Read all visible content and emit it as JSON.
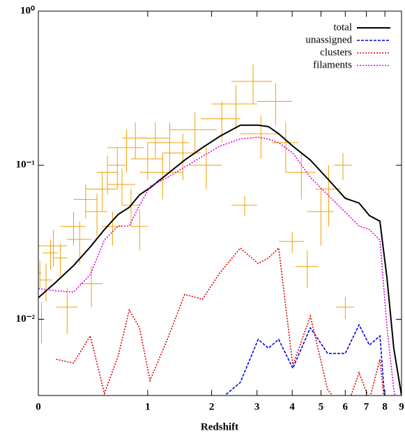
{
  "chart_data": {
    "type": "line",
    "xlabel": "Redshift",
    "xscale": "log(1+x)",
    "yscale": "log",
    "legend": "upper right",
    "xlim": [
      0,
      9
    ],
    "xticks": [
      0,
      1,
      2,
      3,
      4,
      5,
      6,
      7,
      8,
      9
    ],
    "ylim": [
      0.0032,
      1
    ],
    "yticks": [
      {
        "value": 1,
        "label": "10⁰"
      },
      {
        "value": 0.1,
        "label": "10⁻¹"
      },
      {
        "value": 0.01,
        "label": "10⁻²"
      }
    ],
    "x": [
      0,
      0.12,
      0.25,
      0.39,
      0.52,
      0.66,
      0.78,
      0.9,
      1.03,
      1.27,
      1.53,
      1.83,
      2.16,
      2.6,
      3.03,
      3.3,
      3.59,
      4.02,
      4.61,
      5.26,
      6.0,
      6.64,
      7.16,
      7.72,
      8.12,
      8.52,
      9.0
    ],
    "series": [
      {
        "name": "total",
        "color": "#000000",
        "dash": "solid",
        "values": [
          0.0138,
          0.0175,
          0.0223,
          0.0295,
          0.0382,
          0.048,
          0.0533,
          0.0643,
          0.0713,
          0.088,
          0.108,
          0.13,
          0.154,
          0.182,
          0.182,
          0.178,
          0.16,
          0.133,
          0.108,
          0.0817,
          0.061,
          0.0568,
          0.0471,
          0.0433,
          0.0185,
          0.0065,
          0.0032
        ]
      },
      {
        "name": "unassigned",
        "color": "#0000dd",
        "dash": "dashed",
        "values": [
          null,
          null,
          null,
          null,
          null,
          null,
          null,
          null,
          null,
          null,
          null,
          null,
          0.003,
          0.0039,
          0.0074,
          0.0065,
          0.0074,
          0.0048,
          0.0088,
          0.006,
          0.006,
          0.0092,
          0.0068,
          0.0078,
          0.002,
          null,
          null
        ]
      },
      {
        "name": "clusters",
        "color": "#dd0000",
        "dash": "dotted",
        "values": [
          null,
          0.0055,
          0.0052,
          0.0078,
          0.0033,
          0.0058,
          0.0115,
          0.0088,
          0.004,
          0.0075,
          0.0145,
          0.0135,
          0.02,
          0.029,
          0.023,
          0.025,
          0.029,
          0.005,
          0.0105,
          0.0035,
          0.0025,
          0.0045,
          0.003,
          0.0055,
          0.002,
          null,
          null
        ]
      },
      {
        "name": "filaments",
        "color": "#dd00dd",
        "dash": "dotted",
        "values": [
          0.0158,
          0.0153,
          0.015,
          0.0195,
          0.0327,
          0.0403,
          0.0403,
          0.055,
          0.0728,
          0.0834,
          0.0975,
          0.114,
          0.133,
          0.148,
          0.152,
          0.148,
          0.14,
          0.12,
          0.0834,
          0.0643,
          0.0496,
          0.0403,
          0.0382,
          0.0327,
          0.0089,
          0.0035,
          0.002
        ]
      }
    ],
    "points": {
      "color": "#f0a000",
      "x": [
        0.01,
        0.02,
        0.05,
        0.08,
        0.1,
        0.15,
        0.2,
        0.25,
        0.3,
        0.35,
        0.4,
        0.45,
        0.5,
        0.55,
        0.6,
        0.65,
        0.7,
        0.75,
        0.8,
        0.85,
        0.9,
        1.0,
        1.1,
        1.2,
        1.3,
        1.5,
        1.7,
        1.9,
        2.2,
        2.5,
        2.7,
        2.9,
        3.1,
        3.5,
        3.8,
        4.0,
        4.3,
        4.5,
        5.0,
        5.3,
        5.9,
        6.0
      ],
      "values": [
        0.02,
        0.01,
        0.018,
        0.027,
        0.03,
        0.025,
        0.012,
        0.04,
        0.033,
        0.06,
        0.017,
        0.05,
        0.07,
        0.09,
        0.04,
        0.1,
        0.075,
        0.13,
        0.055,
        0.15,
        0.04,
        0.11,
        0.15,
        0.09,
        0.14,
        0.12,
        0.17,
        0.1,
        0.2,
        0.25,
        0.055,
        0.35,
        0.16,
        0.26,
        0.14,
        0.032,
        0.09,
        0.022,
        0.05,
        0.07,
        0.1,
        0.012
      ],
      "xerr": [
        0.01,
        0.02,
        0.04,
        0.05,
        0.1,
        0.05,
        0.08,
        0.1,
        0.1,
        0.1,
        0.1,
        0.1,
        0.15,
        0.1,
        0.1,
        0.1,
        0.15,
        0.2,
        0.1,
        0.15,
        0.1,
        0.2,
        0.2,
        0.3,
        0.3,
        0.3,
        0.4,
        0.3,
        0.4,
        0.5,
        0.3,
        0.5,
        0.5,
        0.5,
        0.4,
        0.4,
        0.5,
        0.4,
        0.5,
        0.5,
        0.4,
        0.4
      ],
      "yerr": [
        0.004,
        0.003,
        0.005,
        0.006,
        0.008,
        0.006,
        0.004,
        0.01,
        0.01,
        0.015,
        0.005,
        0.015,
        0.02,
        0.025,
        0.01,
        0.03,
        0.02,
        0.04,
        0.015,
        0.04,
        0.012,
        0.03,
        0.04,
        0.03,
        0.05,
        0.04,
        0.05,
        0.03,
        0.06,
        0.08,
        0.008,
        0.1,
        0.05,
        0.08,
        0.05,
        0.005,
        0.03,
        0.006,
        0.02,
        0.03,
        0.02,
        0.002
      ]
    }
  }
}
